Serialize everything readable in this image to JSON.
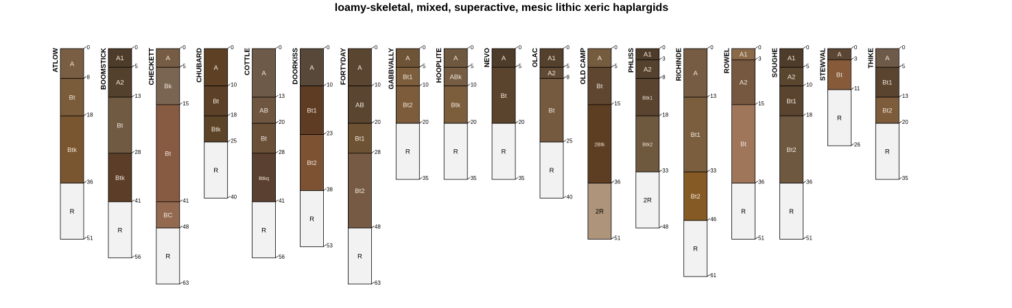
{
  "chart_data": {
    "type": "soil-profile-sketch",
    "title": "loamy-skeletal, mixed, superactive, mesic lithic xeric haplargids",
    "depth_units": "cm",
    "ylim": [
      0,
      63
    ],
    "profiles": [
      {
        "name": "ATLOW",
        "horizons": [
          {
            "name": "A",
            "top": 0,
            "bottom": 8,
            "color": "#7A5E44"
          },
          {
            "name": "Bt",
            "top": 8,
            "bottom": 18,
            "color": "#7A5C3A"
          },
          {
            "name": "Btk",
            "top": 18,
            "bottom": 36,
            "color": "#7A5630"
          },
          {
            "name": "R",
            "top": 36,
            "bottom": 51,
            "color": "#F2F2F2"
          }
        ]
      },
      {
        "name": "BOOMSTICK",
        "horizons": [
          {
            "name": "A1",
            "top": 0,
            "bottom": 5,
            "color": "#4E3C2A"
          },
          {
            "name": "A2",
            "top": 5,
            "bottom": 13,
            "color": "#54412D"
          },
          {
            "name": "Bt",
            "top": 13,
            "bottom": 28,
            "color": "#705A42"
          },
          {
            "name": "Btk",
            "top": 28,
            "bottom": 41,
            "color": "#5C3E28"
          },
          {
            "name": "R",
            "top": 41,
            "bottom": 56,
            "color": "#F2F2F2"
          }
        ]
      },
      {
        "name": "CHECKETT",
        "horizons": [
          {
            "name": "A",
            "top": 0,
            "bottom": 5,
            "color": "#765C44"
          },
          {
            "name": "Bk",
            "top": 5,
            "bottom": 15,
            "color": "#7A6452"
          },
          {
            "name": "Bt",
            "top": 15,
            "bottom": 41,
            "color": "#875A42"
          },
          {
            "name": "BC",
            "top": 41,
            "bottom": 48,
            "color": "#936A50"
          },
          {
            "name": "R",
            "top": 48,
            "bottom": 63,
            "color": "#F2F2F2"
          }
        ]
      },
      {
        "name": "CHUBARD",
        "horizons": [
          {
            "name": "A",
            "top": 0,
            "bottom": 10,
            "color": "#5E4024"
          },
          {
            "name": "Bt",
            "top": 10,
            "bottom": 18,
            "color": "#5C4028"
          },
          {
            "name": "Btk",
            "top": 18,
            "bottom": 25,
            "color": "#5C4428"
          },
          {
            "name": "R",
            "top": 25,
            "bottom": 40,
            "color": "#F2F2F2"
          }
        ]
      },
      {
        "name": "COTTLE",
        "horizons": [
          {
            "name": "A",
            "top": 0,
            "bottom": 13,
            "color": "#6E5A48"
          },
          {
            "name": "AB",
            "top": 13,
            "bottom": 20,
            "color": "#6E5640"
          },
          {
            "name": "Bt",
            "top": 20,
            "bottom": 28,
            "color": "#6B5038"
          },
          {
            "name": "Btkq",
            "top": 28,
            "bottom": 41,
            "color": "#5A4030",
            "small": true
          },
          {
            "name": "R",
            "top": 41,
            "bottom": 56,
            "color": "#F2F2F2"
          }
        ]
      },
      {
        "name": "DOORKISS",
        "horizons": [
          {
            "name": "A",
            "top": 0,
            "bottom": 10,
            "color": "#58483A"
          },
          {
            "name": "Bt1",
            "top": 10,
            "bottom": 23,
            "color": "#5E3C24"
          },
          {
            "name": "Bt2",
            "top": 23,
            "bottom": 38,
            "color": "#7C5232"
          },
          {
            "name": "R",
            "top": 38,
            "bottom": 53,
            "color": "#F2F2F2"
          }
        ]
      },
      {
        "name": "FORTYDAY",
        "horizons": [
          {
            "name": "A",
            "top": 0,
            "bottom": 10,
            "color": "#5A4630"
          },
          {
            "name": "AB",
            "top": 10,
            "bottom": 20,
            "color": "#5A4530"
          },
          {
            "name": "Bt1",
            "top": 20,
            "bottom": 28,
            "color": "#6E5234"
          },
          {
            "name": "Bt2",
            "top": 28,
            "bottom": 48,
            "color": "#765A44"
          },
          {
            "name": "R",
            "top": 48,
            "bottom": 63,
            "color": "#F2F2F2"
          }
        ]
      },
      {
        "name": "GABBVALLY",
        "horizons": [
          {
            "name": "A",
            "top": 0,
            "bottom": 5,
            "color": "#6E5436"
          },
          {
            "name": "Bt1",
            "top": 5,
            "bottom": 10,
            "color": "#7C5E3C"
          },
          {
            "name": "Bt2",
            "top": 10,
            "bottom": 20,
            "color": "#7C5C3A"
          },
          {
            "name": "R",
            "top": 20,
            "bottom": 35,
            "color": "#F2F2F2"
          }
        ]
      },
      {
        "name": "HOOPLITE",
        "horizons": [
          {
            "name": "A",
            "top": 0,
            "bottom": 5,
            "color": "#6E5840"
          },
          {
            "name": "ABk",
            "top": 5,
            "bottom": 10,
            "color": "#765C42"
          },
          {
            "name": "Btk",
            "top": 10,
            "bottom": 20,
            "color": "#7C5E3C"
          },
          {
            "name": "R",
            "top": 20,
            "bottom": 35,
            "color": "#F2F2F2"
          }
        ]
      },
      {
        "name": "NEVO",
        "horizons": [
          {
            "name": "A",
            "top": 0,
            "bottom": 5,
            "color": "#4E3C2A"
          },
          {
            "name": "Bt",
            "top": 5,
            "bottom": 20,
            "color": "#5A442E"
          },
          {
            "name": "R",
            "top": 20,
            "bottom": 35,
            "color": "#F2F2F2"
          }
        ]
      },
      {
        "name": "OLAC",
        "horizons": [
          {
            "name": "A1",
            "top": 0,
            "bottom": 5,
            "color": "#54402C"
          },
          {
            "name": "A2",
            "top": 5,
            "bottom": 8,
            "color": "#604A34"
          },
          {
            "name": "Bt",
            "top": 8,
            "bottom": 25,
            "color": "#765A40"
          },
          {
            "name": "R",
            "top": 25,
            "bottom": 40,
            "color": "#F2F2F2"
          }
        ]
      },
      {
        "name": "OLD CAMP",
        "horizons": [
          {
            "name": "A",
            "top": 0,
            "bottom": 5,
            "color": "#765C3E"
          },
          {
            "name": "Bt",
            "top": 5,
            "bottom": 15,
            "color": "#5E4630"
          },
          {
            "name": "2Btk",
            "top": 15,
            "bottom": 36,
            "color": "#5E3E22",
            "small": true
          },
          {
            "name": "2R",
            "top": 36,
            "bottom": 51,
            "color": "#AD947A",
            "dark": true
          }
        ]
      },
      {
        "name": "PHLISS",
        "horizons": [
          {
            "name": "A1",
            "top": 0,
            "bottom": 3,
            "color": "#4E3C2A"
          },
          {
            "name": "A2",
            "top": 3,
            "bottom": 8,
            "color": "#54412E"
          },
          {
            "name": "Btk1",
            "top": 8,
            "bottom": 18,
            "color": "#5A4430",
            "small": true
          },
          {
            "name": "Btk2",
            "top": 18,
            "bottom": 33,
            "color": "#6E583E",
            "small": true
          },
          {
            "name": "2R",
            "top": 33,
            "bottom": 48,
            "color": "#F2F2F2"
          }
        ]
      },
      {
        "name": "RICHINDE",
        "horizons": [
          {
            "name": "A",
            "top": 0,
            "bottom": 13,
            "color": "#765C42"
          },
          {
            "name": "Bt1",
            "top": 13,
            "bottom": 33,
            "color": "#7A5E3E"
          },
          {
            "name": "Bt2",
            "top": 33,
            "bottom": 46,
            "color": "#855A24"
          },
          {
            "name": "R",
            "top": 46,
            "bottom": 61,
            "color": "#F2F2F2"
          }
        ]
      },
      {
        "name": "ROWEL",
        "horizons": [
          {
            "name": "A1",
            "top": 0,
            "bottom": 3,
            "color": "#8A6A48"
          },
          {
            "name": "A2",
            "top": 3,
            "bottom": 15,
            "color": "#765840"
          },
          {
            "name": "Bt",
            "top": 15,
            "bottom": 36,
            "color": "#A0765A"
          },
          {
            "name": "R",
            "top": 36,
            "bottom": 51,
            "color": "#F2F2F2"
          }
        ]
      },
      {
        "name": "SOUGHE",
        "horizons": [
          {
            "name": "A1",
            "top": 0,
            "bottom": 5,
            "color": "#4E3C2A"
          },
          {
            "name": "A2",
            "top": 5,
            "bottom": 10,
            "color": "#5A452F"
          },
          {
            "name": "Bt1",
            "top": 10,
            "bottom": 18,
            "color": "#5A4430"
          },
          {
            "name": "Bt2",
            "top": 18,
            "bottom": 36,
            "color": "#6E5840"
          },
          {
            "name": "R",
            "top": 36,
            "bottom": 51,
            "color": "#F2F2F2"
          }
        ]
      },
      {
        "name": "STEWVAL",
        "horizons": [
          {
            "name": "A",
            "top": 0,
            "bottom": 3,
            "color": "#5A4632"
          },
          {
            "name": "Bt",
            "top": 3,
            "bottom": 11,
            "color": "#875A3A"
          },
          {
            "name": "R",
            "top": 11,
            "bottom": 26,
            "color": "#F2F2F2"
          }
        ]
      },
      {
        "name": "THIKE",
        "horizons": [
          {
            "name": "A",
            "top": 0,
            "bottom": 5,
            "color": "#6E5A48"
          },
          {
            "name": "Bt1",
            "top": 5,
            "bottom": 13,
            "color": "#5A4430"
          },
          {
            "name": "Bt2",
            "top": 13,
            "bottom": 20,
            "color": "#7C5C3A"
          },
          {
            "name": "R",
            "top": 20,
            "bottom": 35,
            "color": "#F2F2F2"
          }
        ]
      }
    ]
  }
}
